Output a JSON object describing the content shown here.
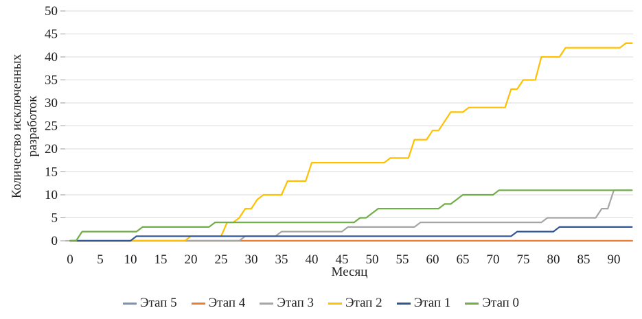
{
  "chart_data": {
    "type": "line",
    "title": "",
    "xlabel": "Месяц",
    "ylabel": "Количество исключенных разработок",
    "ylabel_lines": [
      "Количество исключенных",
      "разработок"
    ],
    "x_ticks": [
      0,
      5,
      10,
      15,
      20,
      25,
      30,
      35,
      40,
      45,
      50,
      55,
      60,
      65,
      70,
      75,
      80,
      85,
      90
    ],
    "y_ticks": [
      0,
      5,
      10,
      15,
      20,
      25,
      30,
      35,
      40,
      45,
      50
    ],
    "xlim": [
      0,
      93
    ],
    "ylim": [
      0,
      50
    ],
    "grid": "horizontal",
    "legend_position": "bottom",
    "colors": {
      "grid": "#d9d9d9",
      "axis": "#9a9a9a",
      "text": "#1f1f1f",
      "background": "#ffffff"
    },
    "series": [
      {
        "id": "etap-5",
        "name": "Этап 5",
        "color": "#7692B4",
        "points": [
          [
            0,
            0
          ],
          [
            93,
            0
          ]
        ]
      },
      {
        "id": "etap-4",
        "name": "Этап 4",
        "color": "#ED7D31",
        "points": [
          [
            0,
            0
          ],
          [
            93,
            0
          ]
        ]
      },
      {
        "id": "etap-3",
        "name": "Этап 3",
        "color": "#A5A5A5",
        "points": [
          [
            0,
            0
          ],
          [
            28,
            0
          ],
          [
            29,
            1
          ],
          [
            34,
            1
          ],
          [
            35,
            2
          ],
          [
            45,
            2
          ],
          [
            46,
            3
          ],
          [
            57,
            3
          ],
          [
            58,
            4
          ],
          [
            78,
            4
          ],
          [
            79,
            5
          ],
          [
            87,
            5
          ],
          [
            88,
            7
          ],
          [
            89,
            7
          ],
          [
            90,
            11
          ],
          [
            93,
            11
          ]
        ]
      },
      {
        "id": "etap-2",
        "name": "Этап 2",
        "color": "#FFC000",
        "points": [
          [
            0,
            0
          ],
          [
            19,
            0
          ],
          [
            20,
            1
          ],
          [
            25,
            1
          ],
          [
            26,
            4
          ],
          [
            27,
            4
          ],
          [
            28,
            5
          ],
          [
            29,
            7
          ],
          [
            30,
            7
          ],
          [
            31,
            9
          ],
          [
            32,
            10
          ],
          [
            35,
            10
          ],
          [
            36,
            13
          ],
          [
            39,
            13
          ],
          [
            40,
            17
          ],
          [
            52,
            17
          ],
          [
            53,
            18
          ],
          [
            56,
            18
          ],
          [
            57,
            22
          ],
          [
            59,
            22
          ],
          [
            60,
            24
          ],
          [
            61,
            24
          ],
          [
            62,
            26
          ],
          [
            63,
            28
          ],
          [
            65,
            28
          ],
          [
            66,
            29
          ],
          [
            72,
            29
          ],
          [
            73,
            33
          ],
          [
            74,
            33
          ],
          [
            75,
            35
          ],
          [
            77,
            35
          ],
          [
            78,
            40
          ],
          [
            81,
            40
          ],
          [
            82,
            42
          ],
          [
            91,
            42
          ],
          [
            92,
            43
          ],
          [
            93,
            43
          ]
        ]
      },
      {
        "id": "etap-1",
        "name": "Этап 1",
        "color": "#2F5597",
        "points": [
          [
            0,
            0
          ],
          [
            10,
            0
          ],
          [
            11,
            1
          ],
          [
            73,
            1
          ],
          [
            74,
            2
          ],
          [
            80,
            2
          ],
          [
            81,
            3
          ],
          [
            93,
            3
          ]
        ]
      },
      {
        "id": "etap-0",
        "name": "Этап 0",
        "color": "#70AD47",
        "points": [
          [
            0,
            0
          ],
          [
            1,
            0
          ],
          [
            2,
            2
          ],
          [
            11,
            2
          ],
          [
            12,
            3
          ],
          [
            23,
            3
          ],
          [
            24,
            4
          ],
          [
            47,
            4
          ],
          [
            48,
            5
          ],
          [
            49,
            5
          ],
          [
            51,
            7
          ],
          [
            61,
            7
          ],
          [
            62,
            8
          ],
          [
            63,
            8
          ],
          [
            64,
            9
          ],
          [
            65,
            10
          ],
          [
            70,
            10
          ],
          [
            71,
            11
          ],
          [
            93,
            11
          ]
        ]
      }
    ]
  }
}
